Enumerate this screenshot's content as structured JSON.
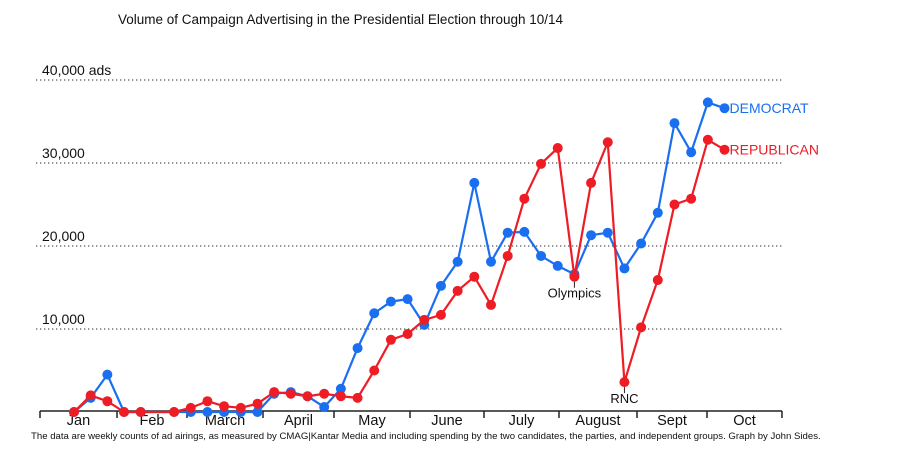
{
  "chart_data": {
    "type": "line",
    "title": "Volume of Campaign Advertising in the Presidential Election through 10/14",
    "xlabel": "",
    "ylabel": "",
    "ylim": [
      0,
      40000
    ],
    "yticks": [
      {
        "value": 10000,
        "label": "10,000"
      },
      {
        "value": 20000,
        "label": "20,000"
      },
      {
        "value": 30000,
        "label": "30,000"
      },
      {
        "value": 40000,
        "label": "40,000 ads"
      }
    ],
    "grid": "horizontal dotted",
    "x_unit": "week",
    "month_labels": [
      "Jan",
      "Feb",
      "March",
      "April",
      "May",
      "June",
      "July",
      "August",
      "Sept",
      "Oct"
    ],
    "weeks": 41,
    "series": [
      {
        "name": "DEMOCRAT",
        "color": "#1a6ff0",
        "values": [
          0,
          1700,
          4500,
          0,
          0,
          null,
          0,
          0,
          0,
          0,
          0,
          0,
          2200,
          2400,
          1900,
          600,
          2800,
          7700,
          11900,
          13300,
          13600,
          10500,
          15200,
          18100,
          27600,
          18100,
          21600,
          21700,
          18800,
          17600,
          16600,
          21300,
          21600,
          17300,
          20300,
          24000,
          34800,
          31300,
          37300,
          36600
        ]
      },
      {
        "name": "REPUBLICAN",
        "color": "#ee1c25",
        "values": [
          0,
          2000,
          1300,
          0,
          0,
          null,
          0,
          500,
          1300,
          700,
          500,
          1000,
          2400,
          2200,
          1900,
          2200,
          1900,
          1700,
          5000,
          8700,
          9400,
          11100,
          11700,
          14600,
          16300,
          12900,
          18800,
          25700,
          29900,
          31800,
          16300,
          27600,
          32500,
          3600,
          10200,
          15900,
          25000,
          25700,
          32800,
          31600
        ]
      }
    ],
    "annotations": [
      {
        "text": "Olympics",
        "series": "REPUBLICAN",
        "index": 30
      },
      {
        "text": "RNC",
        "series": "REPUBLICAN",
        "index": 33
      }
    ],
    "legend": "inline-right",
    "note": "The data are weekly counts of ad airings, as measured by CMAG|Kantar Media and including spending by the two candidates, the parties, and independent groups. Graph by John Sides."
  }
}
